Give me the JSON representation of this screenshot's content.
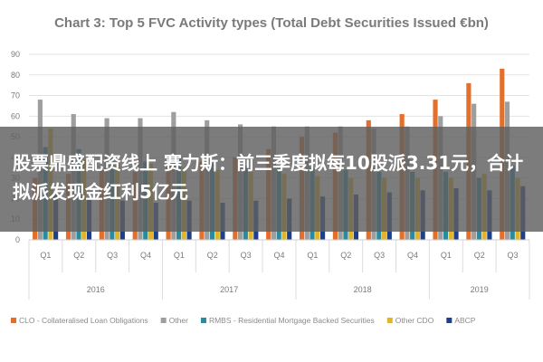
{
  "chart_data": {
    "type": "bar",
    "title": "Chart 3: Top 5 FVC Activity types (Total Debt Securities Issued €bn)",
    "xlabel": "",
    "ylabel": "",
    "ylim": [
      0,
      90
    ],
    "yticks": [
      0,
      10,
      20,
      30,
      40,
      50,
      60,
      70,
      80,
      90
    ],
    "grid": true,
    "legend_position": "bottom",
    "categories": [
      "Q1",
      "Q2",
      "Q3",
      "Q4",
      "Q1",
      "Q2",
      "Q3",
      "Q4",
      "Q1",
      "Q2",
      "Q3",
      "Q4",
      "Q1",
      "Q2",
      "Q3"
    ],
    "years": [
      {
        "label": "2016",
        "start": 0,
        "end": 3
      },
      {
        "label": "2017",
        "start": 4,
        "end": 7
      },
      {
        "label": "2018",
        "start": 8,
        "end": 11
      },
      {
        "label": "2019",
        "start": 12,
        "end": 14
      }
    ],
    "series": [
      {
        "name": "CLO - Collateralised Loan Obligations",
        "color": "#e36f2c",
        "values": [
          30,
          32,
          34,
          33,
          36,
          38,
          40,
          44,
          50,
          52,
          58,
          61,
          68,
          76,
          83
        ]
      },
      {
        "name": "Other",
        "color": "#9e9e9e",
        "values": [
          68,
          61,
          59,
          59,
          62,
          58,
          56,
          55,
          55,
          55,
          54,
          55,
          60,
          66,
          67
        ]
      },
      {
        "name": "RMBS - Residential Mortgage Backed Securities",
        "color": "#2b8a9e",
        "values": [
          45,
          44,
          40,
          38,
          40,
          37,
          36,
          35,
          35,
          34,
          33,
          33,
          33,
          30,
          36
        ]
      },
      {
        "name": "Other CDO",
        "color": "#e0b52a",
        "values": [
          54,
          39,
          38,
          37,
          35,
          34,
          33,
          32,
          31,
          30,
          30,
          30,
          30,
          32,
          30
        ]
      },
      {
        "name": "ABCP",
        "color": "#1f3f87",
        "values": [
          22,
          20,
          19,
          18,
          19,
          18,
          19,
          20,
          21,
          22,
          23,
          24,
          25,
          24,
          26
        ]
      }
    ]
  },
  "overlay": {
    "headline": "股票鼎盛配资线上 赛力斯：前三季度拟每10股派3.31元，合计拟派发现金红利5亿元"
  }
}
